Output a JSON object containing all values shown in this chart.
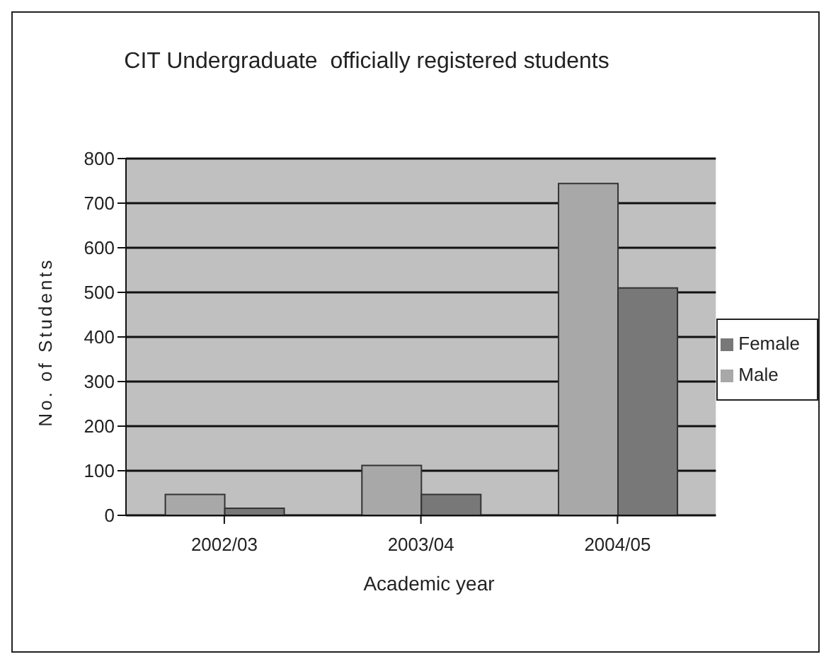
{
  "chart_data": {
    "type": "bar",
    "title": "CIT Undergraduate  officially registered students",
    "xlabel": "Academic year",
    "ylabel": "No. of Students",
    "categories": [
      "2002/03",
      "2003/04",
      "2004/05"
    ],
    "series": [
      {
        "name": "Male",
        "color": "#a8a8a8",
        "values": [
          47,
          112,
          744
        ]
      },
      {
        "name": "Female",
        "color": "#787878",
        "values": [
          16,
          47,
          510
        ]
      }
    ],
    "ylim": [
      0,
      800
    ],
    "yticks": [
      0,
      100,
      200,
      300,
      400,
      500,
      600,
      700,
      800
    ],
    "grid": "y",
    "legend": "right"
  }
}
